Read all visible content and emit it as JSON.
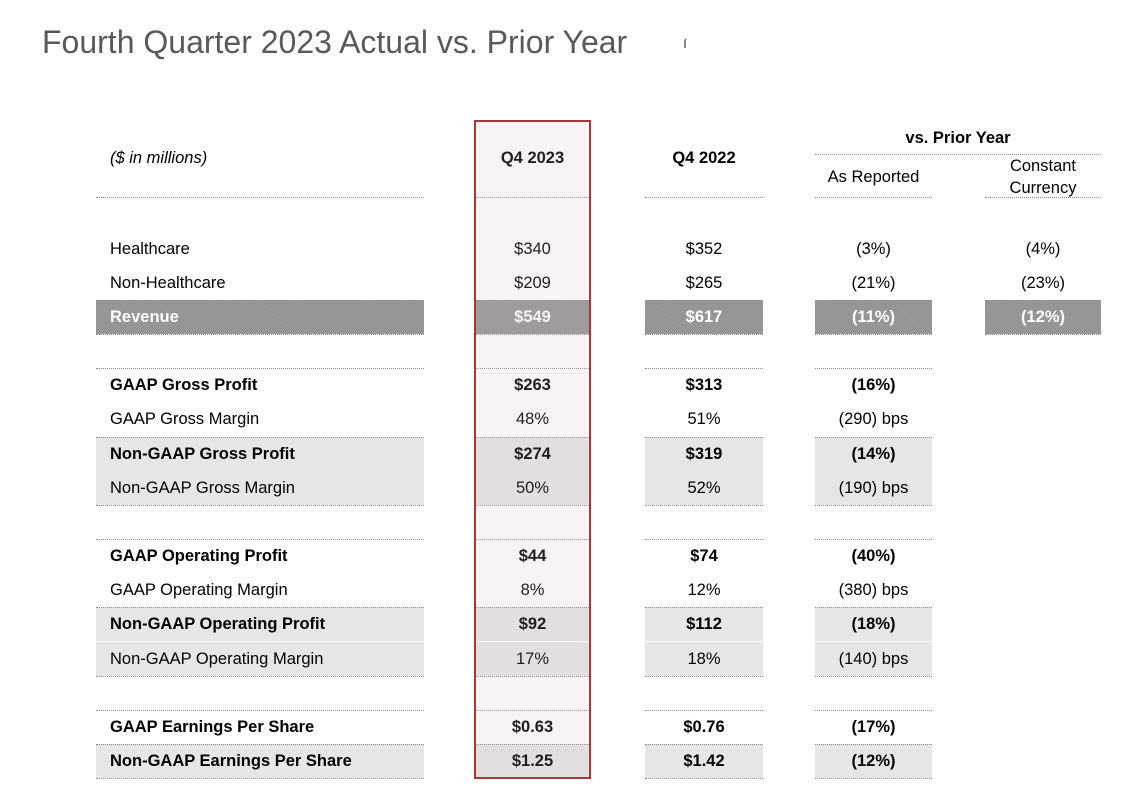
{
  "title": "Fourth Quarter 2023 Actual vs. Prior Year",
  "header": {
    "units": "($ in millions)",
    "q4_2023": "Q4 2023",
    "q4_2022": "Q4 2022",
    "vs_prior_year": "vs. Prior Year",
    "as_reported": "As Reported",
    "constant_currency_1": "Constant",
    "constant_currency_2": "Currency"
  },
  "rows": [
    {
      "label": "Healthcare",
      "q4_2023": "$340",
      "q4_2022": "$352",
      "as_reported": "(3%)",
      "constant_currency": "(4%)"
    },
    {
      "label": "Non-Healthcare",
      "q4_2023": "$209",
      "q4_2022": "$265",
      "as_reported": "(21%)",
      "constant_currency": "(23%)"
    },
    {
      "label": "Revenue",
      "q4_2023": "$549",
      "q4_2022": "$617",
      "as_reported": "(11%)",
      "constant_currency": "(12%)"
    },
    {
      "label": "GAAP Gross Profit",
      "q4_2023": "$263",
      "q4_2022": "$313",
      "as_reported": "(16%)"
    },
    {
      "label": "GAAP Gross Margin",
      "q4_2023": "48%",
      "q4_2022": "51%",
      "as_reported": "(290) bps"
    },
    {
      "label": "Non-GAAP Gross Profit",
      "q4_2023": "$274",
      "q4_2022": "$319",
      "as_reported": "(14%)"
    },
    {
      "label": "Non-GAAP Gross Margin",
      "q4_2023": "50%",
      "q4_2022": "52%",
      "as_reported": "(190) bps"
    },
    {
      "label": "GAAP Operating Profit",
      "q4_2023": "$44",
      "q4_2022": "$74",
      "as_reported": "(40%)"
    },
    {
      "label": "GAAP Operating Margin",
      "q4_2023": "8%",
      "q4_2022": "12%",
      "as_reported": "(380) bps"
    },
    {
      "label": "Non-GAAP Operating Profit",
      "q4_2023": "$92",
      "q4_2022": "$112",
      "as_reported": "(18%)"
    },
    {
      "label": "Non-GAAP Operating Margin",
      "q4_2023": "17%",
      "q4_2022": "18%",
      "as_reported": "(140) bps"
    },
    {
      "label": "GAAP Earnings Per Share",
      "q4_2023": "$0.63",
      "q4_2022": "$0.76",
      "as_reported": "(17%)"
    },
    {
      "label": "Non-GAAP Earnings Per Share",
      "q4_2023": "$1.25",
      "q4_2022": "$1.42",
      "as_reported": "(12%)"
    }
  ]
}
